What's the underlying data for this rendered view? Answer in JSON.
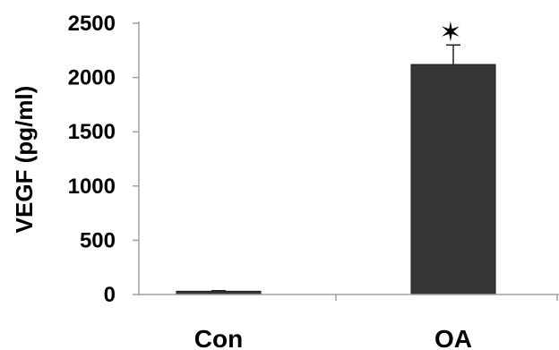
{
  "chart_data": {
    "type": "bar",
    "categories": [
      "Con",
      "OA"
    ],
    "values": [
      30,
      2120
    ],
    "error": [
      5,
      180
    ],
    "annotations": [
      {
        "category": "OA",
        "text": "✶"
      }
    ],
    "title": "",
    "xlabel": "",
    "ylabel": "VEGF (pg/ml)",
    "ylim": [
      0,
      2500
    ],
    "yticks": [
      0,
      500,
      1000,
      1500,
      2000,
      2500
    ],
    "grid": false,
    "bar_color": "#363636",
    "axis_color": "#a0a0a0"
  }
}
